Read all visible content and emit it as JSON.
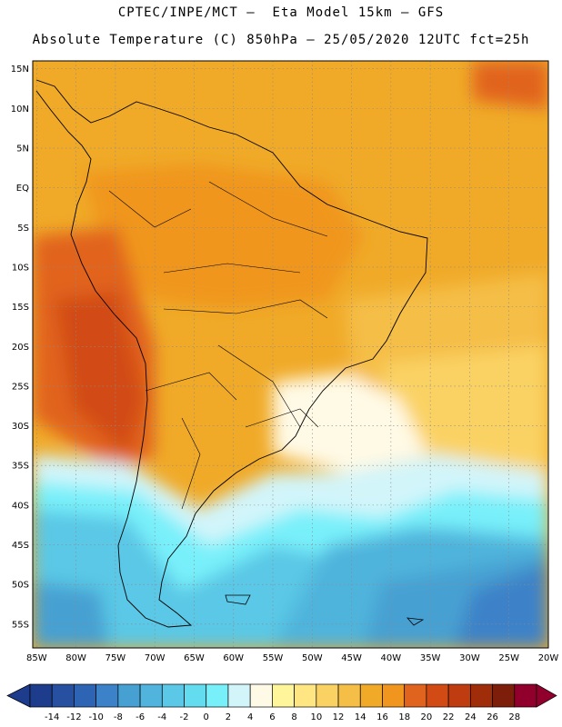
{
  "header": {
    "line1": "CPTEC/INPE/MCT –  Eta Model 15km – GFS",
    "line2": "Absolute Temperature (C) 850hPa – 25/05/2020 12UTC fct=25h"
  },
  "map": {
    "lat_labels": [
      "15N",
      "10N",
      "5N",
      "EQ",
      "5S",
      "10S",
      "15S",
      "20S",
      "25S",
      "30S",
      "35S",
      "40S",
      "45S",
      "50S",
      "55S"
    ],
    "lon_labels": [
      "85W",
      "80W",
      "75W",
      "70W",
      "65W",
      "60W",
      "55W",
      "50W",
      "45W",
      "40W",
      "35W",
      "30W",
      "25W",
      "20W"
    ],
    "lat_range": [
      16,
      -58
    ],
    "lon_range": [
      -85.5,
      -20
    ],
    "grid": "dotted"
  },
  "colorbar": {
    "labels": [
      "-14",
      "-12",
      "-10",
      "-8",
      "-6",
      "-4",
      "-2",
      "0",
      "2",
      "4",
      "6",
      "8",
      "10",
      "12",
      "14",
      "16",
      "18",
      "20",
      "22",
      "24",
      "26",
      "28"
    ],
    "colors": [
      "#1e3c8c",
      "#2850a0",
      "#2e64b4",
      "#3c82c8",
      "#46a0d2",
      "#50b4dc",
      "#5ac8e6",
      "#64dcf0",
      "#78f0fa",
      "#d2f5fa",
      "#fffae6",
      "#fff59b",
      "#ffe682",
      "#fad264",
      "#f5be46",
      "#f0aa28",
      "#f0961e",
      "#e1641e",
      "#d24b14",
      "#be3c0f",
      "#a02d0a",
      "#7d1e0a",
      "#91002d"
    ]
  }
}
